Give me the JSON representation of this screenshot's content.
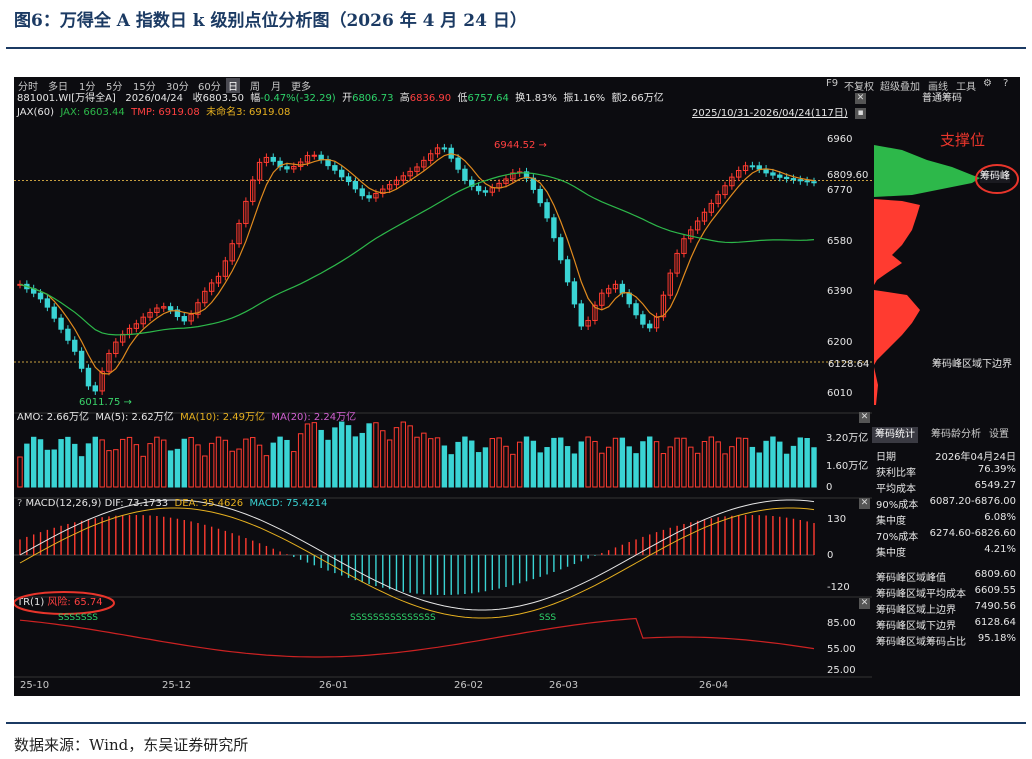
{
  "figure": {
    "title": "图6：万得全 A 指数日 k 级别点位分析图（2026 年 4 月 24 日）",
    "source": "数据来源：Wind，东吴证券研究所"
  },
  "colors": {
    "up": "#ff3b30",
    "down": "#3ad4d4",
    "ma_orange": "#e08a1e",
    "ma_green": "#2db84a",
    "accent_red": "#e8352b",
    "bg": "#0c0c10"
  },
  "toolbar": {
    "periods": [
      "分时",
      "多日",
      "1分",
      "5分",
      "15分",
      "30分",
      "60分",
      "日",
      "周",
      "月",
      "更多"
    ],
    "active_period": "日",
    "right_items": [
      "F9",
      "不复权",
      "超级叠加",
      "画线",
      "工具"
    ],
    "icons": [
      "gear-icon",
      "help-icon"
    ]
  },
  "quote": {
    "code": "881001.WI[万得全A]",
    "date": "2026/04/24",
    "close_label": "收",
    "close": "6803.50",
    "change_label": "幅",
    "change": "-0.47%(-32.29)",
    "open_label": "开",
    "open": "6806.73",
    "high_label": "高",
    "high": "6836.90",
    "low_label": "低",
    "low": "6757.64",
    "turnover_label": "换",
    "turnover": "1.83%",
    "amplitude_label": "振",
    "amplitude": "1.16%",
    "amount_label": "额",
    "amount": "2.66万亿"
  },
  "ma_line": {
    "name": "JAX(60)",
    "jax": "JAX: 6603.44",
    "tmp": "TMP: 6919.08",
    "unnamed": "未命名3: 6919.08"
  },
  "range_label": "2025/10/31-2026/04/24(117日)",
  "price_axis": {
    "ticks": [
      "6960",
      "6770",
      "6580",
      "6390",
      "6200",
      "6010"
    ],
    "tick_values": [
      6960,
      6770,
      6580,
      6390,
      6200,
      6010
    ],
    "min": 5990,
    "max": 7010,
    "current": "6809.60",
    "current_value": 6809.6,
    "support": "6128.64",
    "support_value": 6128.64
  },
  "annotations": {
    "high": "6944.52",
    "low": "6011.75"
  },
  "chip": {
    "title": "普通筹码",
    "peak_label": "支撑位",
    "peak_tag": "筹码峰",
    "lower_bound_label": "筹码峰区域下边界",
    "tabs": [
      "筹码统计",
      "筹码龄分析",
      "设置"
    ],
    "active_tab": "筹码统计",
    "stats": [
      {
        "k": "日期",
        "v": "2026年04月24日"
      },
      {
        "k": "获利比率",
        "v": "76.39%"
      },
      {
        "k": "平均成本",
        "v": "6549.27"
      },
      {
        "k": "90%成本",
        "v": "6087.20-6876.00"
      },
      {
        "k": "集中度",
        "v": "6.08%"
      },
      {
        "k": "70%成本",
        "v": "6274.60-6826.60"
      },
      {
        "k": "集中度",
        "v": "4.21%"
      }
    ],
    "peak_stats": [
      {
        "k": "筹码峰区域峰值",
        "v": "6809.60"
      },
      {
        "k": "筹码峰区域平均成本",
        "v": "6609.55"
      },
      {
        "k": "筹码峰区域上边界",
        "v": "7490.56"
      },
      {
        "k": "筹码峰区域下边界",
        "v": "6128.64"
      },
      {
        "k": "筹码峰区域筹码占比",
        "v": "95.18%"
      }
    ]
  },
  "amo": {
    "header": "AMO: 2.66万亿",
    "ma5": "MA(5): 2.62万亿",
    "ma10": "MA(10): 2.49万亿",
    "ma20": "MA(20): 2.24万亿",
    "ticks": [
      "3.20万亿",
      "1.60万亿",
      "0"
    ]
  },
  "macd": {
    "header": "MACD(12,26,9)",
    "dif": "DIF: 73.1733",
    "dea": "DEA: 35.4626",
    "macd": "MACD: 75.4214",
    "ticks": [
      "130",
      "0",
      "-120"
    ]
  },
  "tr": {
    "header": "TR(1)",
    "risk": "风险: 65.74",
    "signal": "S",
    "signal_groups": [
      "SSSSSSS",
      "SSSSSSSSSSSSSSS",
      "SSS"
    ],
    "ticks": [
      "85.00",
      "55.00",
      "25.00"
    ]
  },
  "x_axis": [
    "25-10",
    "25-12",
    "26-01",
    "26-02",
    "26-03",
    "26-04"
  ]
}
